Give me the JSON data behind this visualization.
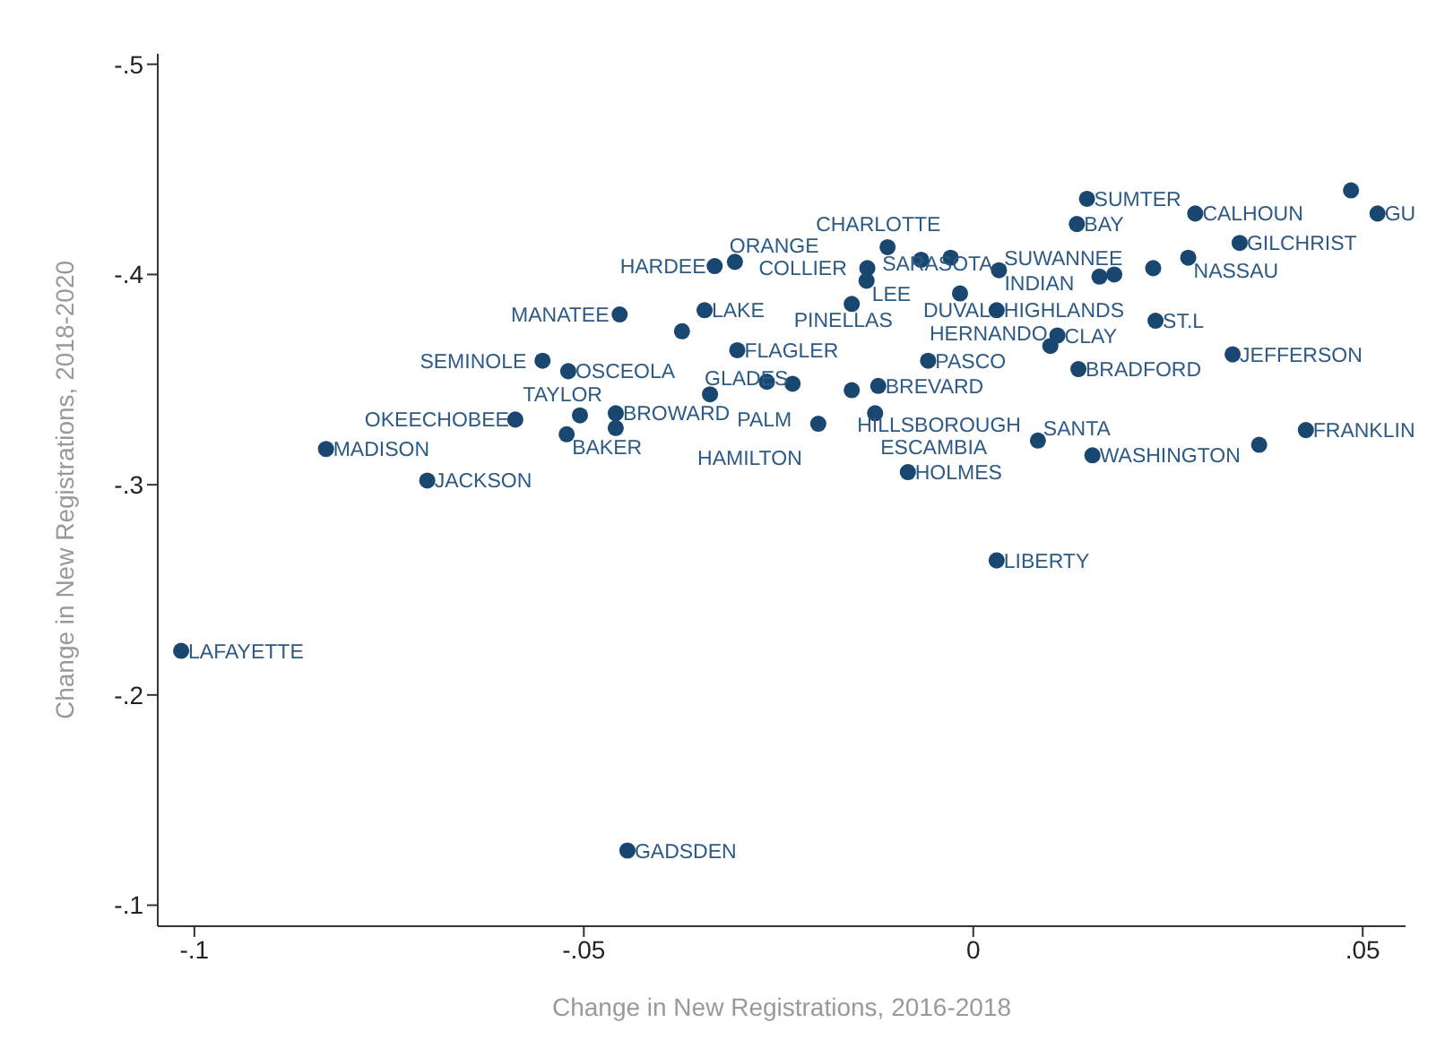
{
  "chart_data": {
    "type": "scatter",
    "xlabel": "Change in New Registrations, 2016-2018",
    "ylabel": "Change in New Registrations, 2018-2020",
    "xlim": [
      -0.1047,
      0.0555
    ],
    "ylim": [
      -0.09,
      -0.505
    ],
    "xticks": [
      {
        "value": -0.1,
        "label": "-.1"
      },
      {
        "value": -0.05,
        "label": "-.05"
      },
      0,
      {
        "value": 0.05,
        "label": ".05"
      }
    ],
    "yticks": [
      {
        "value": -0.5,
        "label": "-.5"
      },
      {
        "value": -0.4,
        "label": "-.4"
      },
      {
        "value": -0.3,
        "label": "-.3"
      },
      {
        "value": -0.2,
        "label": "-.2"
      },
      {
        "value": -0.1,
        "label": "-.1"
      }
    ],
    "marker": "circle",
    "grid": false,
    "series": [
      {
        "color": "#1a476f",
        "x": [
          -0.1017,
          -0.0831,
          -0.0701,
          -0.0444,
          -0.0588,
          -0.0522,
          -0.0459,
          -0.0459,
          0.0146,
          0.0133,
          0.0285,
          0.0519,
          0.0342,
          0.0276,
          0.0181,
          0.0033,
          -0.0136,
          -0.0029,
          -0.011,
          -0.0332,
          -0.0306,
          -0.0137,
          -0.0454,
          -0.0345,
          -0.0303,
          -0.0553,
          -0.052,
          -0.0338,
          -0.0265,
          -0.0156,
          -0.0122,
          -0.0126,
          -0.0199,
          -0.0084,
          0.003,
          0.0083,
          0.0153,
          0.0427,
          0.0333,
          0.0234,
          0.0135,
          0.0099,
          0.0108,
          -0.0058,
          0.003,
          -0.0017,
          -0.0156,
          0.0485,
          0.0162,
          -0.0505,
          -0.0374,
          -0.0067,
          -0.0232,
          0.0367,
          0.0231
        ],
        "values": [
          -0.221,
          -0.317,
          -0.302,
          -0.126,
          -0.331,
          -0.324,
          -0.334,
          -0.327,
          -0.436,
          -0.424,
          -0.429,
          -0.429,
          -0.415,
          -0.408,
          -0.4,
          -0.402,
          -0.403,
          -0.408,
          -0.413,
          -0.404,
          -0.406,
          -0.397,
          -0.381,
          -0.383,
          -0.364,
          -0.359,
          -0.354,
          -0.343,
          -0.349,
          -0.345,
          -0.347,
          -0.334,
          -0.329,
          -0.306,
          -0.264,
          -0.321,
          -0.314,
          -0.326,
          -0.362,
          -0.378,
          -0.355,
          -0.366,
          -0.371,
          -0.359,
          -0.383,
          -0.391,
          -0.386,
          -0.44,
          -0.399,
          -0.333,
          -0.373,
          -0.407,
          -0.348,
          -0.319,
          -0.403
        ],
        "value_labels": [
          "LAFAYETTE",
          "MADISON",
          "JACKSON",
          "GADSDEN",
          "OKEECHOBEE",
          "BAKER",
          "BROWARD",
          "TAYLOR",
          "SUMTER",
          "BAY",
          "CALHOUN",
          "GU",
          "GILCHRIST",
          "NASSAU",
          "SUWANNEE",
          "INDIAN",
          "COLLIER",
          "CHARLOTTE",
          "SARASOTA",
          "HARDEE",
          "ORANGE",
          "LEE",
          "MANATEE",
          "LAKE",
          "FLAGLER",
          "SEMINOLE",
          "OSCEOLA",
          "GLADES",
          "PALM",
          "HILLSBOROUGH",
          "BREVARD",
          "ESCAMBIA",
          "HAMILTON",
          "HOLMES",
          "LIBERTY",
          "SANTA",
          "WASHINGTON",
          "FRANKLIN",
          "JEFFERSON",
          "ST.L",
          "BRADFORD",
          "HERNANDO",
          "CLAY",
          "PASCO",
          "HIGHLANDS",
          "DUVAL",
          "PINELLAS",
          null,
          null,
          null,
          null,
          null,
          null,
          null,
          null
        ]
      }
    ]
  }
}
